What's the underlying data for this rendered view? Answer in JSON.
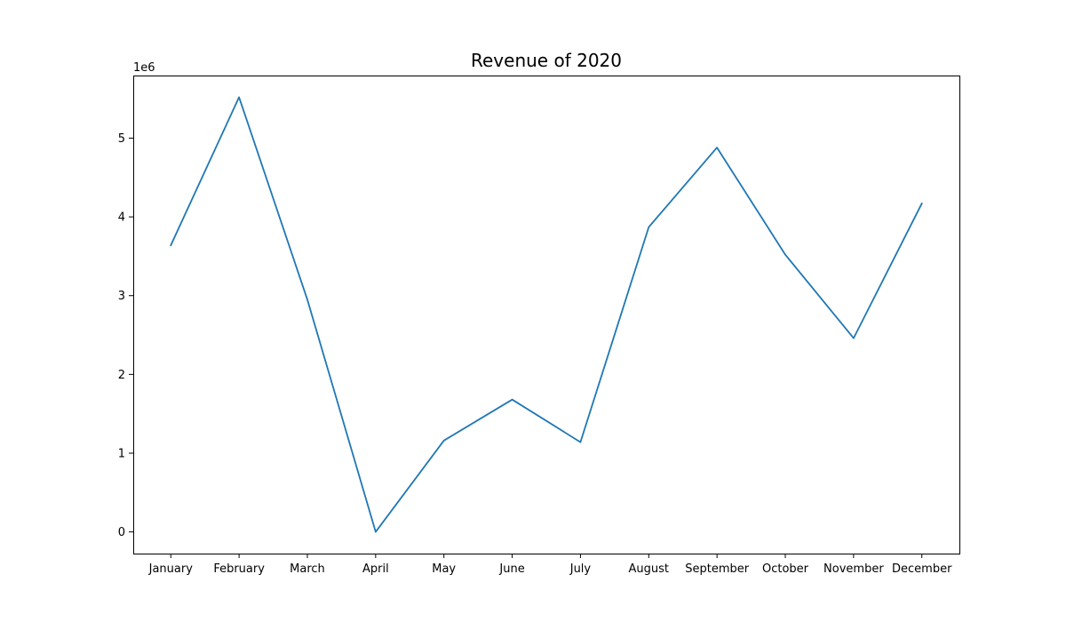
{
  "chart_data": {
    "type": "line",
    "title": "Revenue of 2020",
    "xlabel": "",
    "ylabel": "",
    "y_offset_label": "1e6",
    "categories": [
      "January",
      "February",
      "March",
      "April",
      "May",
      "June",
      "July",
      "August",
      "September",
      "October",
      "November",
      "December"
    ],
    "series": [
      {
        "values": [
          3640000,
          5520000,
          2950000,
          0,
          1160000,
          1680000,
          1140000,
          3870000,
          4880000,
          3520000,
          2460000,
          4170000
        ]
      }
    ],
    "yticks": [
      0,
      1,
      2,
      3,
      4,
      5
    ],
    "ytick_labels": [
      "0",
      "1",
      "2",
      "3",
      "4",
      "5"
    ],
    "ylim": [
      -275000,
      5795000
    ],
    "grid": false,
    "colors": {
      "line": "#1f77b4",
      "axis": "#000000"
    }
  }
}
